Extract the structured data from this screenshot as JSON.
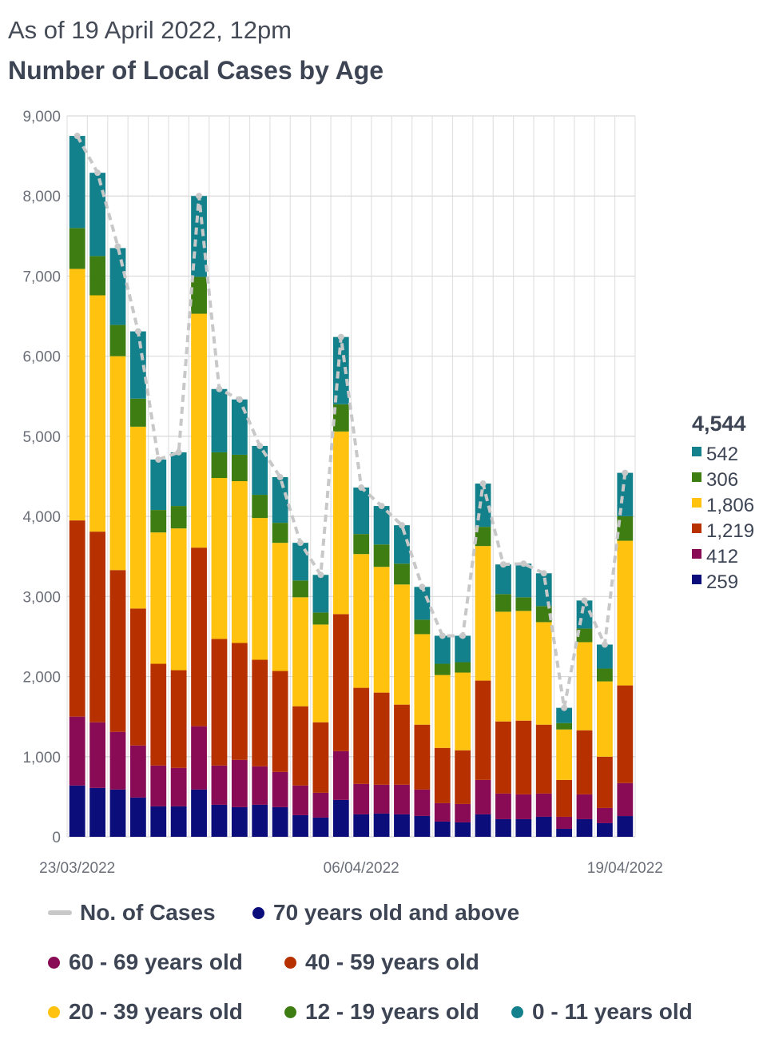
{
  "header": {
    "subtitle": "As of 19 April 2022, 12pm",
    "title": "Number of Local Cases by Age"
  },
  "chart_data": {
    "type": "bar",
    "stacked": true,
    "categories": [
      "23/03/2022",
      "24/03/2022",
      "25/03/2022",
      "26/03/2022",
      "27/03/2022",
      "28/03/2022",
      "29/03/2022",
      "30/03/2022",
      "31/03/2022",
      "01/04/2022",
      "02/04/2022",
      "03/04/2022",
      "04/04/2022",
      "05/04/2022",
      "06/04/2022",
      "07/04/2022",
      "08/04/2022",
      "09/04/2022",
      "10/04/2022",
      "11/04/2022",
      "12/04/2022",
      "13/04/2022",
      "14/04/2022",
      "15/04/2022",
      "16/04/2022",
      "17/04/2022",
      "18/04/2022",
      "19/04/2022"
    ],
    "x_tick_labels": [
      {
        "index": 0,
        "label": "23/03/2022"
      },
      {
        "index": 14,
        "label": "06/04/2022"
      },
      {
        "index": 27,
        "label": "19/04/2022"
      }
    ],
    "ylim": [
      0,
      9000
    ],
    "yticks": [
      0,
      1000,
      2000,
      3000,
      4000,
      5000,
      6000,
      7000,
      8000,
      9000
    ],
    "ytick_labels": [
      "0",
      "1,000",
      "2,000",
      "3,000",
      "4,000",
      "5,000",
      "6,000",
      "7,000",
      "8,000",
      "9,000"
    ],
    "grid": true,
    "series": [
      {
        "name": "70 years old and above",
        "color": "#0a0d7a",
        "values": [
          640,
          610,
          590,
          490,
          380,
          380,
          590,
          400,
          370,
          400,
          370,
          270,
          240,
          460,
          280,
          290,
          280,
          260,
          190,
          180,
          280,
          220,
          220,
          250,
          100,
          220,
          170,
          259
        ]
      },
      {
        "name": "60 - 69 years old",
        "color": "#8a0b55",
        "values": [
          860,
          820,
          720,
          650,
          510,
          480,
          790,
          490,
          590,
          480,
          440,
          370,
          310,
          610,
          380,
          360,
          370,
          330,
          230,
          230,
          430,
          320,
          310,
          290,
          150,
          310,
          190,
          412
        ]
      },
      {
        "name": "40 - 59 years old",
        "color": "#b73000",
        "values": [
          2450,
          2380,
          2020,
          1710,
          1270,
          1220,
          2230,
          1580,
          1460,
          1330,
          1260,
          990,
          880,
          1710,
          1200,
          1150,
          1000,
          810,
          690,
          670,
          1240,
          900,
          920,
          860,
          460,
          800,
          640,
          1219
        ]
      },
      {
        "name": "20 - 39 years old",
        "color": "#ffc20e",
        "values": [
          3140,
          2950,
          2670,
          2270,
          1640,
          1770,
          2920,
          2010,
          2020,
          1770,
          1600,
          1360,
          1220,
          2280,
          1670,
          1570,
          1500,
          1130,
          910,
          970,
          1680,
          1370,
          1370,
          1280,
          630,
          1100,
          940,
          1806
        ]
      },
      {
        "name": "12 - 19 years old",
        "color": "#3e7d12",
        "values": [
          510,
          490,
          390,
          350,
          280,
          280,
          460,
          320,
          330,
          290,
          250,
          210,
          150,
          340,
          250,
          280,
          260,
          180,
          140,
          130,
          240,
          220,
          170,
          200,
          80,
          170,
          160,
          306
        ]
      },
      {
        "name": "0 - 11 years old",
        "color": "#13818c",
        "values": [
          1150,
          1040,
          960,
          840,
          630,
          670,
          1010,
          790,
          690,
          610,
          570,
          470,
          470,
          840,
          580,
          480,
          480,
          410,
          350,
          330,
          540,
          370,
          420,
          410,
          190,
          350,
          300,
          542
        ]
      }
    ],
    "line_series": {
      "name": "No. of Cases",
      "color": "#c8c8c8",
      "values": [
        8750,
        8290,
        7370,
        6310,
        4710,
        4800,
        8000,
        5590,
        5460,
        4880,
        4490,
        3670,
        3270,
        6240,
        4360,
        4130,
        3890,
        3120,
        2510,
        2510,
        4410,
        3400,
        3410,
        3290,
        1610,
        2950,
        2400,
        4544
      ]
    },
    "side_summary": {
      "total": "4,544",
      "values": [
        "542",
        "306",
        "1,806",
        "1,219",
        "412",
        "259"
      ],
      "colors": [
        "#13818c",
        "#3e7d12",
        "#ffc20e",
        "#b73000",
        "#8a0b55",
        "#0a0d7a"
      ]
    },
    "legend_placement": "bottom"
  },
  "legend": {
    "line_label": "No. of Cases",
    "items": [
      {
        "label": "70 years old and above",
        "color": "#0a0d7a"
      },
      {
        "label": "60 - 69 years old",
        "color": "#8a0b55"
      },
      {
        "label": "40 - 59 years old",
        "color": "#b73000"
      },
      {
        "label": "20 - 39 years old",
        "color": "#ffc20e"
      },
      {
        "label": "12 - 19 years old",
        "color": "#3e7d12"
      },
      {
        "label": "0 - 11 years old",
        "color": "#13818c"
      }
    ]
  }
}
